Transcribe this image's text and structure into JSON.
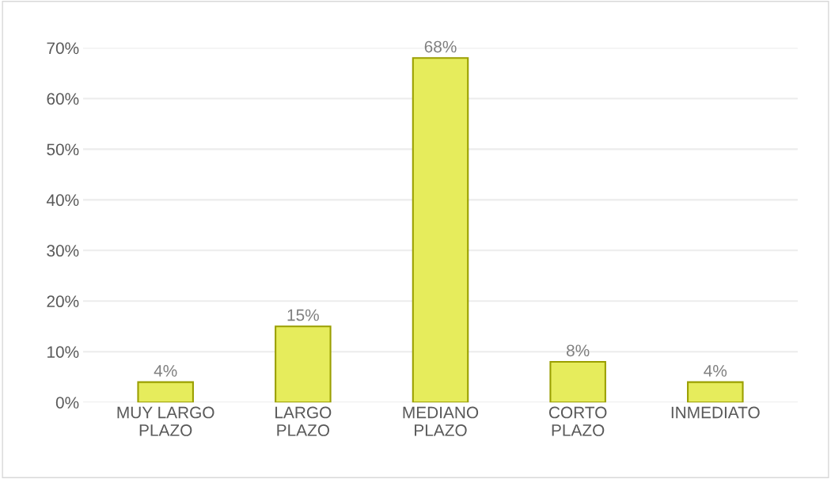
{
  "chart_data": {
    "type": "bar",
    "categories": [
      "MUY LARGO\nPLAZO",
      "LARGO\nPLAZO",
      "MEDIANO\nPLAZO",
      "CORTO\nPLAZO",
      "INMEDIATO"
    ],
    "values": [
      4,
      15,
      68,
      8,
      4
    ],
    "value_labels": [
      "4%",
      "15%",
      "68%",
      "8%",
      "4%"
    ],
    "color": "#e6ec5c",
    "ylim": [
      0,
      70
    ],
    "yticks": [
      {
        "value": 0,
        "label": "0%"
      },
      {
        "value": 10,
        "label": "10%"
      },
      {
        "value": 20,
        "label": "20%"
      },
      {
        "value": 30,
        "label": "30%"
      },
      {
        "value": 40,
        "label": "40%"
      },
      {
        "value": 50,
        "label": "50%"
      },
      {
        "value": 60,
        "label": "60%"
      },
      {
        "value": 70,
        "label": "70%"
      }
    ],
    "grid": "y",
    "legend": false
  }
}
